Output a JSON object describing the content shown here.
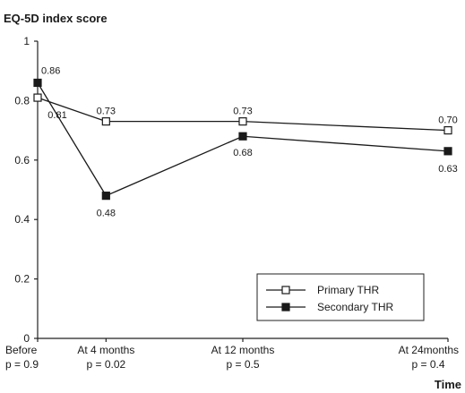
{
  "chart_data": {
    "type": "line",
    "title": "EQ-5D index score",
    "xlabel": "Time",
    "ylabel": "",
    "ylim": [
      0,
      1
    ],
    "yticks": [
      "0",
      "0.2",
      "0.4",
      "0.6",
      "0.8",
      "1"
    ],
    "categories": [
      "Before",
      "At 4 months",
      "At 12 months",
      "At 24months"
    ],
    "pvalues": [
      "p = 0.9",
      "p = 0.02",
      "p = 0.5",
      "p = 0.4"
    ],
    "x_months": [
      0,
      4,
      12,
      24
    ],
    "series": [
      {
        "name": "Primary THR",
        "marker": "open-square",
        "color": "#1a1a1a",
        "values": [
          0.81,
          0.73,
          0.73,
          0.7
        ],
        "labels": [
          "0.81",
          "0.73",
          "0.73",
          "0.70"
        ]
      },
      {
        "name": "Secondary THR",
        "marker": "filled-square",
        "color": "#1a1a1a",
        "values": [
          0.86,
          0.48,
          0.68,
          0.63
        ],
        "labels": [
          "0.86",
          "0.48",
          "0.68",
          "0.63"
        ]
      }
    ],
    "legend": "bottom-right",
    "grid": false
  }
}
